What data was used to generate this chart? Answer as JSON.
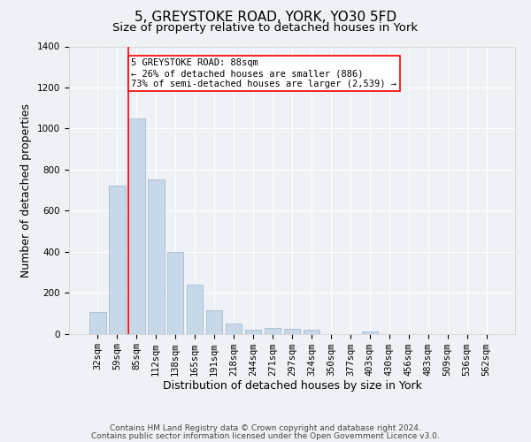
{
  "title": "5, GREYSTOKE ROAD, YORK, YO30 5FD",
  "subtitle": "Size of property relative to detached houses in York",
  "xlabel": "Distribution of detached houses by size in York",
  "ylabel": "Number of detached properties",
  "footnote1": "Contains HM Land Registry data © Crown copyright and database right 2024.",
  "footnote2": "Contains public sector information licensed under the Open Government Licence v3.0.",
  "bar_labels": [
    "32sqm",
    "59sqm",
    "85sqm",
    "112sqm",
    "138sqm",
    "165sqm",
    "191sqm",
    "218sqm",
    "244sqm",
    "271sqm",
    "297sqm",
    "324sqm",
    "350sqm",
    "377sqm",
    "403sqm",
    "430sqm",
    "456sqm",
    "483sqm",
    "509sqm",
    "536sqm",
    "562sqm"
  ],
  "bar_values": [
    105,
    720,
    1050,
    750,
    400,
    240,
    115,
    50,
    20,
    30,
    25,
    18,
    0,
    0,
    10,
    0,
    0,
    0,
    0,
    0,
    0
  ],
  "bar_color": "#c8d8e8",
  "bar_edge_color": "#9ab4cc",
  "vline_color": "red",
  "vline_bar_index": 2,
  "ylim": [
    0,
    1400
  ],
  "yticks": [
    0,
    200,
    400,
    600,
    800,
    1000,
    1200,
    1400
  ],
  "annotation_text": "5 GREYSTOKE ROAD: 88sqm\n← 26% of detached houses are smaller (886)\n73% of semi-detached houses are larger (2,539) →",
  "annotation_box_facecolor": "white",
  "annotation_box_edgecolor": "red",
  "bg_color": "#eef2f7",
  "grid_color": "white",
  "title_fontsize": 11,
  "subtitle_fontsize": 9.5,
  "axis_label_fontsize": 9,
  "tick_fontsize": 7.5,
  "footnote_fontsize": 6.5,
  "annotation_fontsize": 7.5
}
